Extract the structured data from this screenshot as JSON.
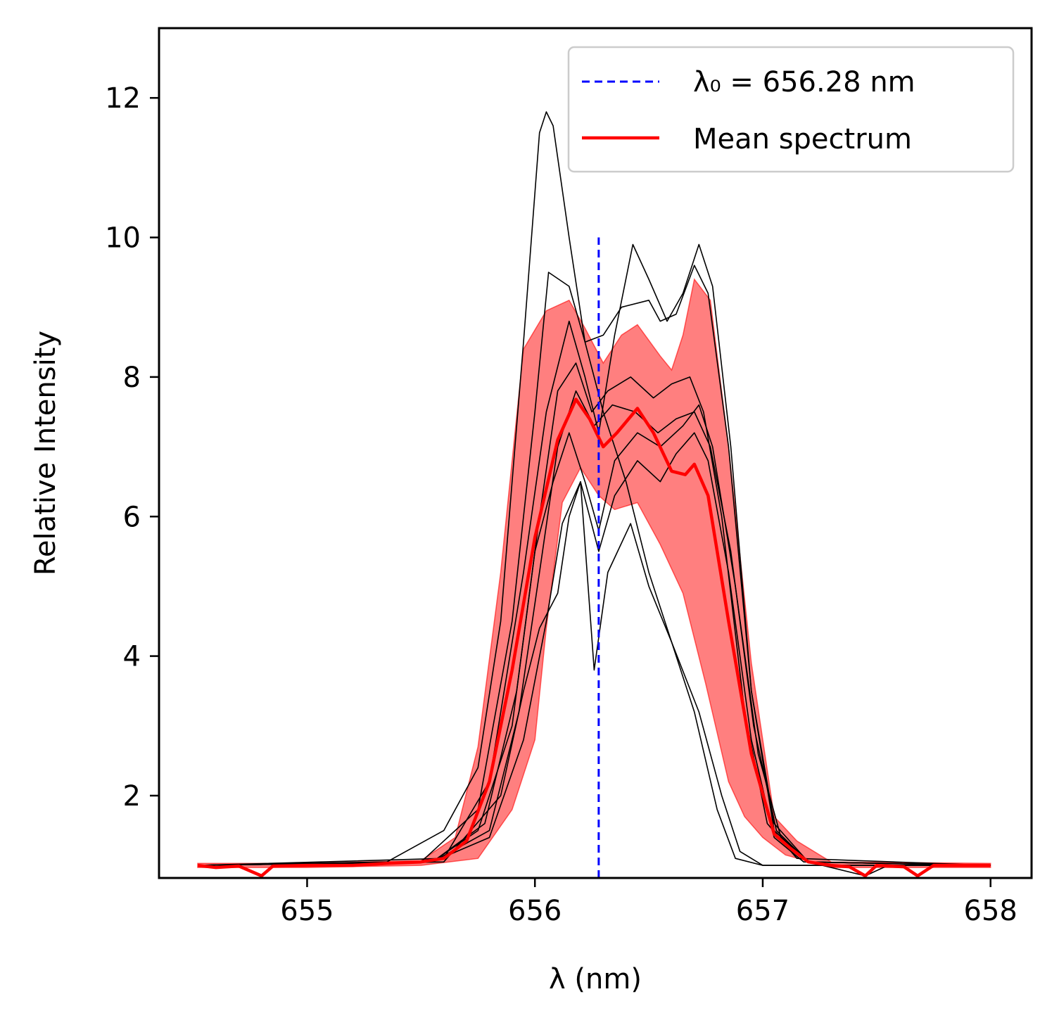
{
  "chart_data": {
    "type": "line",
    "xlabel": "λ (nm)",
    "ylabel": "Relative Intensity",
    "xlim": [
      654.35,
      658.18
    ],
    "ylim": [
      0.82,
      13.0
    ],
    "xticks": [
      655,
      656,
      657,
      658
    ],
    "yticks": [
      2,
      4,
      6,
      8,
      10,
      12
    ],
    "grid": false,
    "legend_position": "top-right",
    "legend": [
      {
        "label": "λ₀ = 656.28 nm",
        "style": "dashed",
        "color": "#0000ff"
      },
      {
        "label": "Mean spectrum",
        "style": "solid",
        "color": "#ff0000"
      }
    ],
    "reference_line": {
      "x": 656.28,
      "y_range": [
        0.82,
        10.0
      ],
      "color": "#0000ff",
      "style": "dashed"
    },
    "mean_spectrum": {
      "color": "#ff0000",
      "points": [
        [
          654.52,
          1.0
        ],
        [
          654.6,
          0.97
        ],
        [
          654.7,
          0.99
        ],
        [
          654.8,
          0.85
        ],
        [
          654.85,
          0.99
        ],
        [
          655.0,
          1.0
        ],
        [
          655.2,
          1.0
        ],
        [
          655.35,
          1.03
        ],
        [
          655.5,
          1.05
        ],
        [
          655.6,
          1.1
        ],
        [
          655.7,
          1.35
        ],
        [
          655.8,
          2.2
        ],
        [
          655.9,
          3.8
        ],
        [
          656.0,
          5.7
        ],
        [
          656.1,
          7.1
        ],
        [
          656.18,
          7.68
        ],
        [
          656.24,
          7.4
        ],
        [
          656.3,
          7.0
        ],
        [
          656.36,
          7.2
        ],
        [
          656.45,
          7.55
        ],
        [
          656.52,
          7.2
        ],
        [
          656.6,
          6.65
        ],
        [
          656.66,
          6.6
        ],
        [
          656.7,
          6.75
        ],
        [
          656.76,
          6.3
        ],
        [
          656.85,
          4.5
        ],
        [
          656.95,
          2.6
        ],
        [
          657.05,
          1.45
        ],
        [
          657.12,
          1.25
        ],
        [
          657.2,
          1.05
        ],
        [
          657.3,
          1.0
        ],
        [
          657.38,
          0.98
        ],
        [
          657.45,
          0.85
        ],
        [
          657.5,
          1.0
        ],
        [
          657.62,
          0.98
        ],
        [
          657.68,
          0.85
        ],
        [
          657.75,
          1.0
        ],
        [
          657.85,
          1.0
        ],
        [
          658.0,
          1.0
        ]
      ]
    },
    "band": {
      "color": "#ff0000",
      "opacity": 0.5,
      "upper": [
        [
          654.52,
          1.03
        ],
        [
          655.0,
          1.03
        ],
        [
          655.5,
          1.07
        ],
        [
          655.65,
          1.4
        ],
        [
          655.75,
          2.7
        ],
        [
          655.85,
          5.2
        ],
        [
          655.95,
          8.4
        ],
        [
          656.05,
          8.95
        ],
        [
          656.15,
          9.1
        ],
        [
          656.22,
          8.7
        ],
        [
          656.3,
          8.2
        ],
        [
          656.38,
          8.6
        ],
        [
          656.45,
          8.75
        ],
        [
          656.55,
          8.3
        ],
        [
          656.6,
          8.1
        ],
        [
          656.65,
          8.6
        ],
        [
          656.7,
          9.4
        ],
        [
          656.77,
          9.1
        ],
        [
          656.85,
          7.0
        ],
        [
          656.95,
          3.9
        ],
        [
          657.05,
          1.7
        ],
        [
          657.15,
          1.35
        ],
        [
          657.3,
          1.05
        ],
        [
          658.0,
          1.03
        ]
      ],
      "lower": [
        [
          654.52,
          0.97
        ],
        [
          655.0,
          0.97
        ],
        [
          655.5,
          1.0
        ],
        [
          655.75,
          1.1
        ],
        [
          655.9,
          1.8
        ],
        [
          656.0,
          2.8
        ],
        [
          656.05,
          4.4
        ],
        [
          656.12,
          6.2
        ],
        [
          656.2,
          6.7
        ],
        [
          656.28,
          6.3
        ],
        [
          656.35,
          6.1
        ],
        [
          656.45,
          6.2
        ],
        [
          656.55,
          5.6
        ],
        [
          656.65,
          4.9
        ],
        [
          656.75,
          3.6
        ],
        [
          656.85,
          2.2
        ],
        [
          656.92,
          1.7
        ],
        [
          657.0,
          1.4
        ],
        [
          657.1,
          1.15
        ],
        [
          657.3,
          0.97
        ],
        [
          658.0,
          0.97
        ]
      ]
    },
    "individual_spectra": {
      "color": "#000000",
      "series": [
        {
          "points": [
            [
              654.52,
              1.0
            ],
            [
              655.35,
              1.05
            ],
            [
              655.6,
              1.5
            ],
            [
              655.75,
              2.4
            ],
            [
              655.85,
              4.5
            ],
            [
              655.95,
              8.5
            ],
            [
              656.02,
              11.5
            ],
            [
              656.05,
              11.8
            ],
            [
              656.08,
              11.6
            ],
            [
              656.15,
              10.0
            ],
            [
              656.22,
              8.5
            ],
            [
              656.3,
              7.5
            ],
            [
              656.4,
              6.5
            ],
            [
              656.5,
              5.2
            ],
            [
              656.6,
              4.2
            ],
            [
              656.7,
              3.2
            ],
            [
              656.8,
              1.8
            ],
            [
              656.88,
              1.1
            ],
            [
              657.0,
              1.0
            ],
            [
              657.3,
              1.0
            ],
            [
              658.0,
              1.0
            ]
          ]
        },
        {
          "points": [
            [
              654.52,
              1.0
            ],
            [
              655.5,
              1.05
            ],
            [
              655.75,
              1.8
            ],
            [
              655.9,
              4.5
            ],
            [
              656.0,
              7.5
            ],
            [
              656.06,
              9.5
            ],
            [
              656.15,
              9.3
            ],
            [
              656.22,
              8.5
            ],
            [
              656.3,
              8.6
            ],
            [
              656.38,
              9.0
            ],
            [
              656.5,
              9.1
            ],
            [
              656.55,
              8.8
            ],
            [
              656.62,
              8.9
            ],
            [
              656.7,
              9.6
            ],
            [
              656.76,
              9.2
            ],
            [
              656.85,
              7.0
            ],
            [
              656.95,
              3.5
            ],
            [
              657.05,
              1.6
            ],
            [
              657.2,
              1.05
            ],
            [
              657.45,
              0.85
            ],
            [
              657.55,
              1.0
            ],
            [
              658.0,
              1.0
            ]
          ]
        },
        {
          "points": [
            [
              654.52,
              1.0
            ],
            [
              655.6,
              1.1
            ],
            [
              655.8,
              2.2
            ],
            [
              655.95,
              5.2
            ],
            [
              656.05,
              7.5
            ],
            [
              656.15,
              8.8
            ],
            [
              656.22,
              8.0
            ],
            [
              656.28,
              7.2
            ],
            [
              656.35,
              8.6
            ],
            [
              656.43,
              9.9
            ],
            [
              656.5,
              9.4
            ],
            [
              656.58,
              8.8
            ],
            [
              656.65,
              9.2
            ],
            [
              656.72,
              9.9
            ],
            [
              656.78,
              9.3
            ],
            [
              656.86,
              7.0
            ],
            [
              656.95,
              3.5
            ],
            [
              657.05,
              1.5
            ],
            [
              657.2,
              1.05
            ],
            [
              658.0,
              1.0
            ]
          ]
        },
        {
          "points": [
            [
              654.52,
              1.0
            ],
            [
              655.6,
              1.05
            ],
            [
              655.85,
              2.0
            ],
            [
              655.95,
              3.5
            ],
            [
              656.02,
              4.4
            ],
            [
              656.1,
              4.9
            ],
            [
              656.15,
              6.0
            ],
            [
              656.2,
              6.5
            ],
            [
              656.26,
              3.8
            ],
            [
              656.32,
              5.2
            ],
            [
              656.42,
              5.9
            ],
            [
              656.5,
              5.0
            ],
            [
              656.6,
              4.2
            ],
            [
              656.72,
              3.2
            ],
            [
              656.82,
              2.0
            ],
            [
              656.9,
              1.2
            ],
            [
              657.0,
              1.0
            ],
            [
              658.0,
              1.0
            ]
          ]
        },
        {
          "points": [
            [
              654.52,
              1.0
            ],
            [
              655.55,
              1.05
            ],
            [
              655.75,
              1.5
            ],
            [
              655.9,
              3.0
            ],
            [
              656.0,
              5.5
            ],
            [
              656.08,
              6.5
            ],
            [
              656.15,
              7.2
            ],
            [
              656.22,
              6.5
            ],
            [
              656.28,
              5.8
            ],
            [
              656.35,
              6.8
            ],
            [
              656.45,
              7.2
            ],
            [
              656.55,
              7.0
            ],
            [
              656.65,
              7.3
            ],
            [
              656.72,
              7.6
            ],
            [
              656.78,
              7.0
            ],
            [
              656.88,
              5.0
            ],
            [
              656.98,
              2.6
            ],
            [
              657.08,
              1.4
            ],
            [
              657.2,
              1.05
            ],
            [
              658.0,
              1.0
            ]
          ]
        },
        {
          "points": [
            [
              654.52,
              1.0
            ],
            [
              655.55,
              1.05
            ],
            [
              655.78,
              1.6
            ],
            [
              655.92,
              3.5
            ],
            [
              656.02,
              6.0
            ],
            [
              656.1,
              7.8
            ],
            [
              656.18,
              8.2
            ],
            [
              656.25,
              7.5
            ],
            [
              656.32,
              7.8
            ],
            [
              656.42,
              8.0
            ],
            [
              656.52,
              7.7
            ],
            [
              656.6,
              7.9
            ],
            [
              656.68,
              8.0
            ],
            [
              656.74,
              7.5
            ],
            [
              656.82,
              6.0
            ],
            [
              656.92,
              3.2
            ],
            [
              657.02,
              1.6
            ],
            [
              657.15,
              1.1
            ],
            [
              658.0,
              1.0
            ]
          ]
        },
        {
          "points": [
            [
              654.52,
              1.0
            ],
            [
              655.55,
              1.05
            ],
            [
              655.8,
              1.4
            ],
            [
              655.95,
              2.8
            ],
            [
              656.05,
              4.5
            ],
            [
              656.12,
              5.9
            ],
            [
              656.2,
              6.5
            ],
            [
              656.28,
              5.5
            ],
            [
              656.35,
              6.3
            ],
            [
              656.45,
              6.8
            ],
            [
              656.55,
              6.5
            ],
            [
              656.62,
              6.9
            ],
            [
              656.7,
              7.2
            ],
            [
              656.76,
              6.8
            ],
            [
              656.85,
              5.2
            ],
            [
              656.95,
              2.8
            ],
            [
              657.05,
              1.4
            ],
            [
              657.18,
              1.05
            ],
            [
              658.0,
              1.0
            ]
          ]
        },
        {
          "points": [
            [
              654.52,
              1.0
            ],
            [
              655.55,
              1.05
            ],
            [
              655.8,
              1.5
            ],
            [
              655.93,
              3.2
            ],
            [
              656.02,
              5.2
            ],
            [
              656.1,
              7.0
            ],
            [
              656.18,
              7.8
            ],
            [
              656.26,
              7.3
            ],
            [
              656.34,
              7.6
            ],
            [
              656.44,
              7.5
            ],
            [
              656.54,
              7.2
            ],
            [
              656.62,
              7.4
            ],
            [
              656.7,
              7.5
            ],
            [
              656.77,
              7.0
            ],
            [
              656.86,
              5.5
            ],
            [
              656.96,
              3.0
            ],
            [
              657.06,
              1.5
            ],
            [
              657.2,
              1.05
            ],
            [
              658.0,
              1.0
            ]
          ]
        }
      ]
    }
  }
}
